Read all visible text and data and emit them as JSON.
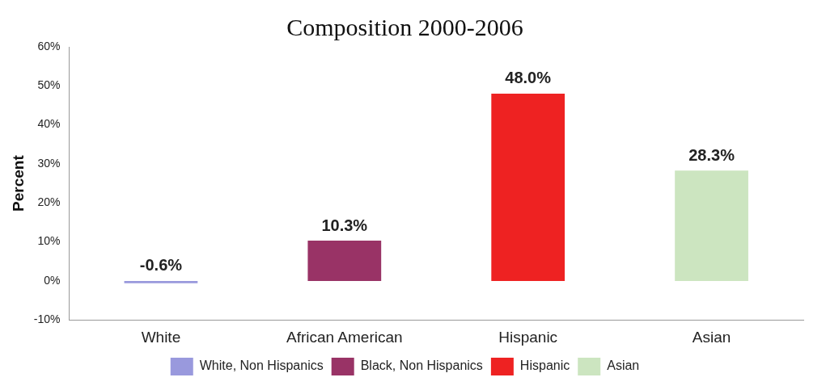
{
  "chart_data": {
    "type": "bar",
    "title": "Composition 2000-2006",
    "ylabel": "Percent",
    "categories": [
      "White",
      "African American",
      "Hispanic",
      "Asian"
    ],
    "series": [
      {
        "name": "White, Non Hispanics",
        "color": "#9999dd",
        "values": [
          -0.6,
          null,
          null,
          null
        ],
        "value_labels": [
          "-0.6%",
          null,
          null,
          null
        ]
      },
      {
        "name": "Black, Non Hispanics",
        "color": "#993366",
        "values": [
          null,
          10.3,
          null,
          null
        ],
        "value_labels": [
          null,
          "10.3%",
          null,
          null
        ]
      },
      {
        "name": "Hispanic",
        "color": "#ee2222",
        "values": [
          null,
          null,
          48.0,
          null
        ],
        "value_labels": [
          null,
          null,
          "48.0%",
          null
        ]
      },
      {
        "name": "Asian",
        "color": "#cce5c0",
        "values": [
          null,
          null,
          null,
          28.3
        ],
        "value_labels": [
          null,
          null,
          null,
          "28.3%"
        ]
      }
    ],
    "legend": "bottom",
    "grid": false,
    "ylim": [
      -10,
      60
    ],
    "yticks": [
      {
        "value": -10,
        "label": "-10%"
      },
      {
        "value": 0,
        "label": "0%"
      },
      {
        "value": 10,
        "label": "10%"
      },
      {
        "value": 20,
        "label": "20%"
      },
      {
        "value": 30,
        "label": "30%"
      },
      {
        "value": 40,
        "label": "40%"
      },
      {
        "value": 50,
        "label": "50%"
      },
      {
        "value": 60,
        "label": "60%"
      }
    ]
  }
}
